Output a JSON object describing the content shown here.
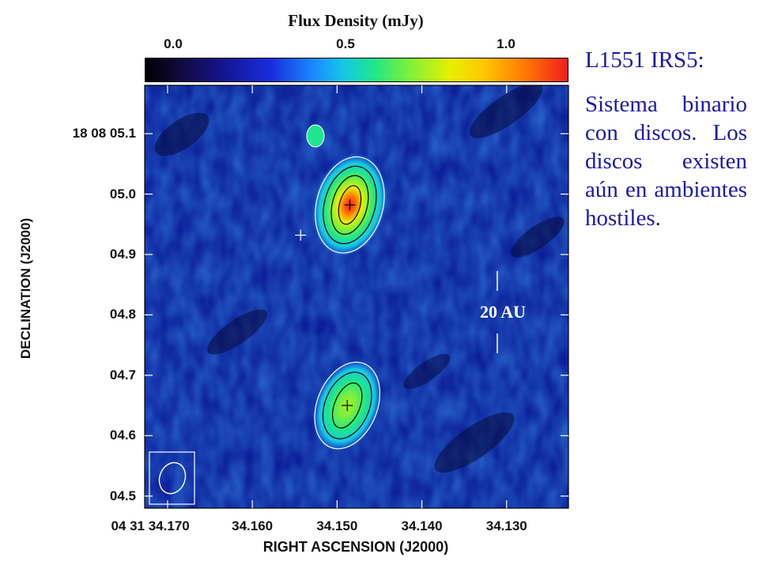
{
  "chart_data": {
    "type": "heatmap",
    "title": "Flux Density (mJy)",
    "colorbar": {
      "tick_labels": [
        "0.0",
        "0.5",
        "1.0"
      ],
      "ticks": [
        0.0,
        0.5,
        1.0
      ],
      "range": [
        0.0,
        1.2
      ]
    },
    "xlabel": "RIGHT ASCENSION (J2000)",
    "ylabel": "DECLINATION (J2000)",
    "xtick_labels": [
      "04 31 34.170",
      "34.160",
      "34.150",
      "34.140",
      "34.130"
    ],
    "xticks_sec": [
      34.17,
      34.16,
      34.15,
      34.14,
      34.13
    ],
    "xlim_sec": [
      34.1727,
      34.1227
    ],
    "ytick_labels": [
      "18 08 05.1",
      "05.0",
      "04.9",
      "04.8",
      "04.7",
      "04.6",
      "04.5"
    ],
    "yticks_sec": [
      5.1,
      5.0,
      4.9,
      4.8,
      4.7,
      4.6,
      4.5
    ],
    "ylim_sec": [
      4.48,
      5.18
    ],
    "sources": [
      {
        "ra_sec": 34.1485,
        "dec_sec": 4.982,
        "peak_mJy": 1.15
      },
      {
        "ra_sec": 34.1488,
        "dec_sec": 4.65,
        "peak_mJy": 0.82
      }
    ],
    "markers": [
      {
        "ra_sec": 34.1485,
        "dec_sec": 4.982
      },
      {
        "ra_sec": 34.1488,
        "dec_sec": 4.65
      },
      {
        "ra_sec": 34.1543,
        "dec_sec": 4.932
      }
    ],
    "scale_bar_label": "20 AU",
    "beam": "ellipse"
  },
  "side_text": {
    "title": "L1551 IRS5:",
    "body": "Sistema binario con discos. Los discos existen aún en ambientes hostiles."
  }
}
